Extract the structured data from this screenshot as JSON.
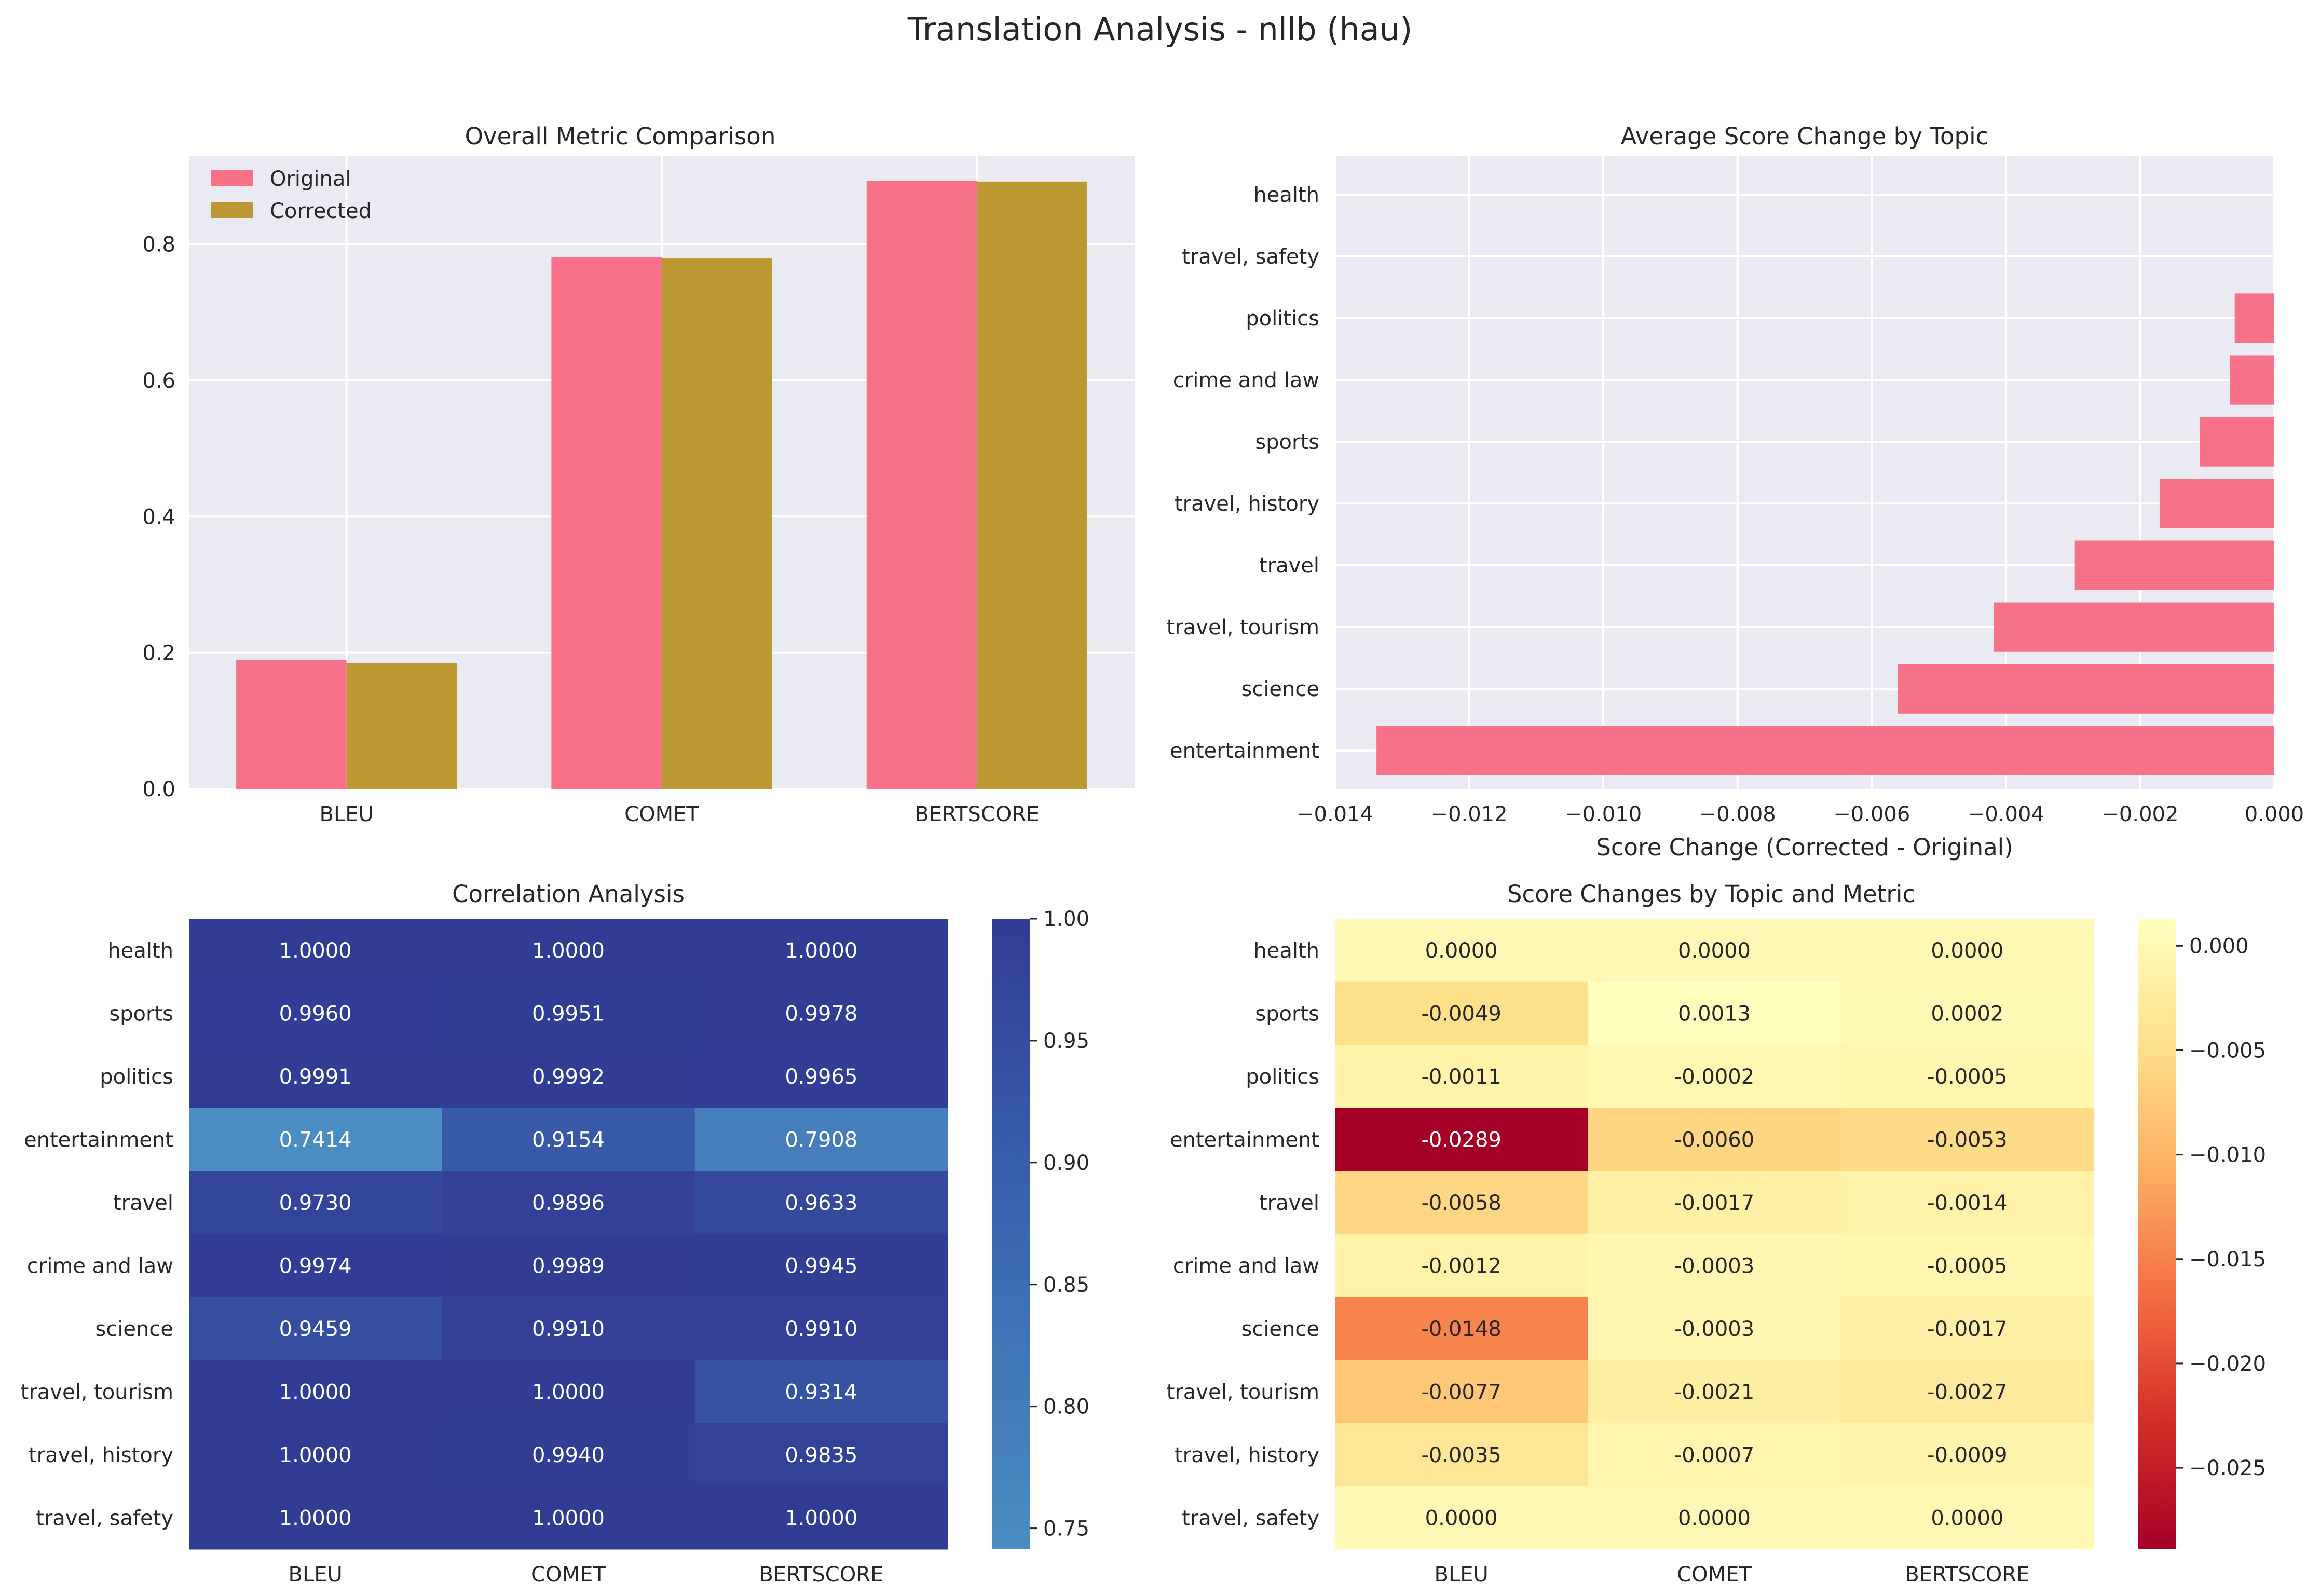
{
  "figure": {
    "title": "Translation Analysis - nllb (hau)"
  },
  "colors": {
    "original": "#f77189",
    "corrected": "#bb9832",
    "panel_bg": "#eaeaf2",
    "grid": "#ffffff"
  },
  "chart_data": [
    {
      "type": "bar",
      "title": "Overall Metric Comparison",
      "xlabel": "",
      "ylabel": "",
      "categories": [
        "BLEU",
        "COMET",
        "BERTSCORE"
      ],
      "series": [
        {
          "name": "Original",
          "values": [
            0.189,
            0.781,
            0.893
          ]
        },
        {
          "name": "Corrected",
          "values": [
            0.185,
            0.779,
            0.892
          ]
        }
      ],
      "ylim": [
        0,
        0.93
      ],
      "yticks": [
        "0.0",
        "0.2",
        "0.4",
        "0.6",
        "0.8"
      ],
      "grid": true,
      "legend": "top-left"
    },
    {
      "type": "bar",
      "orientation": "horizontal",
      "title": "Average Score Change by Topic",
      "xlabel": "Score Change (Corrected - Original)",
      "ylabel": "",
      "categories": [
        "entertainment",
        "science",
        "travel, tourism",
        "travel",
        "travel, history",
        "sports",
        "crime and law",
        "politics",
        "travel, safety",
        "health"
      ],
      "values": [
        -0.01338,
        -0.00561,
        -0.00418,
        -0.00298,
        -0.00171,
        -0.00111,
        -0.00066,
        -0.00059,
        0.0,
        0.0
      ],
      "xlim": [
        -0.014,
        0.0
      ],
      "xticks": [
        "−0.014",
        "−0.012",
        "−0.010",
        "−0.008",
        "−0.006",
        "−0.004",
        "−0.002",
        "0.000"
      ],
      "grid": true
    },
    {
      "type": "heatmap",
      "title": "Correlation Analysis",
      "columns": [
        "BLEU",
        "COMET",
        "BERTSCORE"
      ],
      "rows": [
        "health",
        "sports",
        "politics",
        "entertainment",
        "travel",
        "crime and law",
        "science",
        "travel, tourism",
        "travel, history",
        "travel, safety"
      ],
      "values": [
        [
          1.0,
          1.0,
          1.0
        ],
        [
          0.996,
          0.9951,
          0.9978
        ],
        [
          0.9991,
          0.9992,
          0.9965
        ],
        [
          0.7414,
          0.9154,
          0.7908
        ],
        [
          0.973,
          0.9896,
          0.9633
        ],
        [
          0.9974,
          0.9989,
          0.9945
        ],
        [
          0.9459,
          0.991,
          0.991
        ],
        [
          1.0,
          1.0,
          0.9314
        ],
        [
          1.0,
          0.994,
          0.9835
        ],
        [
          1.0,
          1.0,
          1.0
        ]
      ],
      "labels": [
        [
          "1.0000",
          "1.0000",
          "1.0000"
        ],
        [
          "0.9960",
          "0.9951",
          "0.9978"
        ],
        [
          "0.9991",
          "0.9992",
          "0.9965"
        ],
        [
          "0.7414",
          "0.9154",
          "0.7908"
        ],
        [
          "0.9730",
          "0.9896",
          "0.9633"
        ],
        [
          "0.9974",
          "0.9989",
          "0.9945"
        ],
        [
          "0.9459",
          "0.9910",
          "0.9910"
        ],
        [
          "1.0000",
          "1.0000",
          "0.9314"
        ],
        [
          "1.0000",
          "0.9940",
          "0.9835"
        ],
        [
          "1.0000",
          "1.0000",
          "1.0000"
        ]
      ],
      "colorbar": {
        "range": [
          0.7414,
          1.0
        ],
        "ticks": [
          0.75,
          0.8,
          0.85,
          0.9,
          0.95,
          1.0
        ],
        "tick_labels": [
          "0.75",
          "0.80",
          "0.85",
          "0.90",
          "0.95",
          "1.00"
        ],
        "colors": [
          "#4b8cc2",
          "#3a68b0",
          "#313c95"
        ]
      }
    },
    {
      "type": "heatmap",
      "title": "Score Changes by Topic and Metric",
      "columns": [
        "BLEU",
        "COMET",
        "BERTSCORE"
      ],
      "rows": [
        "health",
        "sports",
        "politics",
        "entertainment",
        "travel",
        "crime and law",
        "science",
        "travel, tourism",
        "travel, history",
        "travel, safety"
      ],
      "values": [
        [
          0.0,
          0.0,
          0.0
        ],
        [
          -0.0049,
          0.0013,
          0.0002
        ],
        [
          -0.0011,
          -0.0002,
          -0.0005
        ],
        [
          -0.0289,
          -0.006,
          -0.0053
        ],
        [
          -0.0058,
          -0.0017,
          -0.0014
        ],
        [
          -0.0012,
          -0.0003,
          -0.0005
        ],
        [
          -0.0148,
          -0.0003,
          -0.0017
        ],
        [
          -0.0077,
          -0.0021,
          -0.0027
        ],
        [
          -0.0035,
          -0.0007,
          -0.0009
        ],
        [
          0.0,
          0.0,
          0.0
        ]
      ],
      "labels": [
        [
          "0.0000",
          "0.0000",
          "0.0000"
        ],
        [
          "-0.0049",
          "0.0013",
          "0.0002"
        ],
        [
          "-0.0011",
          "-0.0002",
          "-0.0005"
        ],
        [
          "-0.0289",
          "-0.0060",
          "-0.0053"
        ],
        [
          "-0.0058",
          "-0.0017",
          "-0.0014"
        ],
        [
          "-0.0012",
          "-0.0003",
          "-0.0005"
        ],
        [
          "-0.0148",
          "-0.0003",
          "-0.0017"
        ],
        [
          "-0.0077",
          "-0.0021",
          "-0.0027"
        ],
        [
          "-0.0035",
          "-0.0007",
          "-0.0009"
        ],
        [
          "0.0000",
          "0.0000",
          "0.0000"
        ]
      ],
      "colorbar": {
        "range": [
          -0.0289,
          0.0013
        ],
        "ticks": [
          0.0,
          -0.005,
          -0.01,
          -0.015,
          -0.02,
          -0.025
        ],
        "tick_labels": [
          "0.000",
          "−0.005",
          "−0.010",
          "−0.015",
          "−0.020",
          "−0.025"
        ],
        "colors": [
          "#a50026",
          "#d42d27",
          "#f46d43",
          "#fdae61",
          "#fee08b",
          "#ffffbf"
        ]
      }
    }
  ]
}
